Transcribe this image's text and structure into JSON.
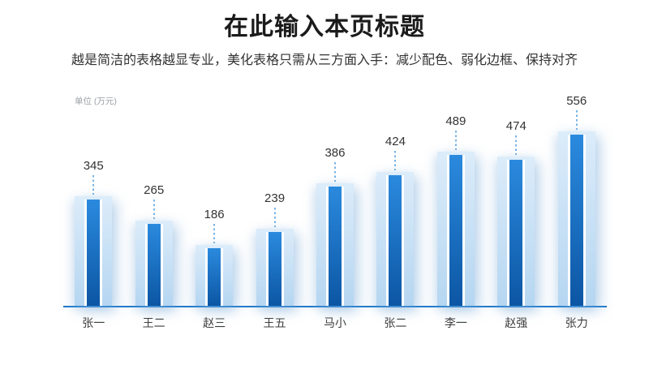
{
  "page": {
    "title": "在此输入本页标题",
    "subtitle": "越是简洁的表格越显专业，美化表格只需从三方面入手：减少配色、弱化边框、保持对齐"
  },
  "chart_data": {
    "type": "bar",
    "title": "在此输入本页标题",
    "unit_label": "单位 (万元)",
    "categories": [
      "张一",
      "王二",
      "赵三",
      "王五",
      "马小",
      "张二",
      "李一",
      "赵强",
      "张力"
    ],
    "values": [
      345,
      265,
      186,
      239,
      386,
      424,
      489,
      474,
      556
    ],
    "xlabel": "",
    "ylabel": "万元",
    "ylim": [
      0,
      650
    ],
    "grid": false,
    "legend": "none",
    "value_labels_shown": true,
    "colors": {
      "bar_dark_top": "#2b8ade",
      "bar_dark_bottom": "#0c56a4",
      "bar_light_top": "#dcecfa",
      "bar_light_bottom": "#b5d6f1",
      "axis_line": "#1d79cc",
      "dash_line": "#77b3e5",
      "value_label": "#333333",
      "category_label": "#3d3d3d",
      "unit_label": "#9aa0a6"
    }
  }
}
